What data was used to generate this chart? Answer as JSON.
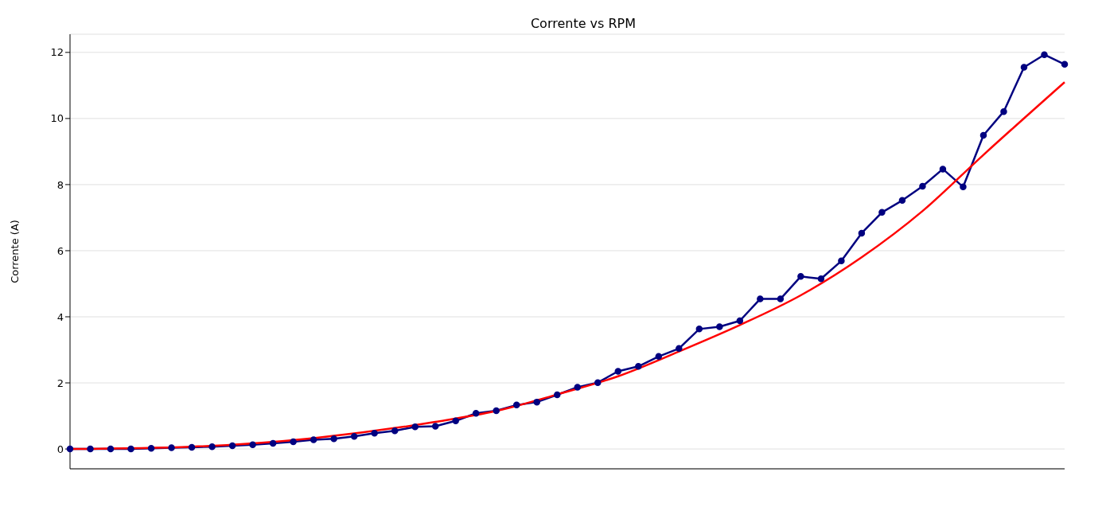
{
  "chart_data": {
    "type": "line",
    "title": "Corrente vs RPM",
    "ylabel": "Corrente (A)",
    "categories": [
      null,
      null,
      null,
      null,
      null,
      null,
      null,
      null,
      null,
      null,
      null,
      null,
      null,
      null,
      null,
      null,
      null,
      null,
      null,
      null,
      null,
      null,
      null,
      null,
      null,
      null,
      null,
      null,
      null,
      null,
      null,
      null,
      null,
      null,
      null,
      null,
      null,
      null,
      null,
      null,
      null,
      null,
      null,
      null,
      null,
      null,
      null,
      null,
      null,
      null
    ],
    "series": [
      {
        "color": "#000080",
        "marker": "circle",
        "values": [
          0,
          0,
          0,
          0,
          0.02,
          0.04,
          0.05,
          0.07,
          0.1,
          0.13,
          0.17,
          0.22,
          0.28,
          0.31,
          0.38,
          0.48,
          0.55,
          0.67,
          0.69,
          0.85,
          1.08,
          1.16,
          1.33,
          1.42,
          1.64,
          1.87,
          2.01,
          2.35,
          2.5,
          2.8,
          3.04,
          3.63,
          3.7,
          3.88,
          4.54,
          4.54,
          5.22,
          5.15,
          5.69,
          6.53,
          7.16,
          7.52,
          7.95,
          8.47,
          7.93,
          9.49,
          10.21,
          11.55,
          11.93,
          11.64
        ]
      },
      {
        "color": "#ff0000",
        "marker": "none",
        "values": [
          0,
          null,
          null,
          null,
          null,
          null,
          0.07,
          null,
          null,
          null,
          null,
          null,
          0.33,
          null,
          null,
          null,
          null,
          null,
          0.82,
          null,
          null,
          1.15,
          null,
          null,
          1.65,
          null,
          null,
          2.2,
          null,
          null,
          2.95,
          null,
          null,
          3.75,
          null,
          null,
          4.65,
          null,
          null,
          5.8,
          null,
          null,
          7.2,
          null,
          null,
          8.9,
          null,
          null,
          null,
          11.1
        ]
      }
    ],
    "ylim": [
      -0.6,
      12.55
    ],
    "yticks": [
      0,
      2,
      4,
      6,
      8,
      10,
      12
    ],
    "grid": "y",
    "tick_labels": "y",
    "line_style": "solid"
  }
}
